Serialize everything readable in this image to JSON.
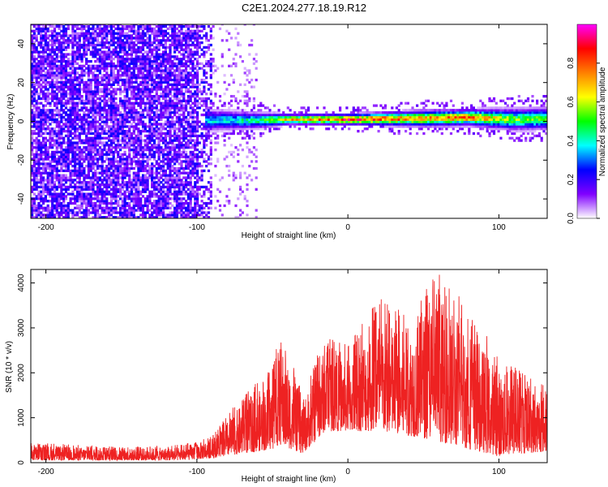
{
  "title": "C2E1.2024.277.18.19.R12",
  "chart_data": [
    {
      "type": "heatmap",
      "xlabel": "Height of straight line (km)",
      "ylabel": "Frequency (Hz)",
      "xlim": [
        -210,
        132
      ],
      "ylim": [
        -50,
        50
      ],
      "xticks": [
        -200,
        -100,
        0,
        100
      ],
      "yticks": [
        -40,
        -20,
        0,
        20,
        40
      ],
      "colorbar": {
        "label": "Normalized spectral amplitude",
        "range": [
          0,
          1
        ],
        "ticks": [
          "0.0",
          "0.2",
          "0.4",
          "0.6",
          "0.8"
        ],
        "colors": [
          "#ffffff",
          "#8000ff",
          "#0000ff",
          "#00ffff",
          "#00ff00",
          "#ffff00",
          "#ff8000",
          "#ff0000",
          "#ff00ff"
        ]
      },
      "noise_region": [
        -210,
        -90
      ],
      "signal_band": [
        {
          "x": -95,
          "freq": 0,
          "width": 4,
          "amp": 0.4
        },
        {
          "x": -60,
          "freq": 0,
          "width": 3,
          "amp": 0.5
        },
        {
          "x": -40,
          "freq": 0.5,
          "width": 2,
          "amp": 0.75
        },
        {
          "x": 0,
          "freq": 0.5,
          "width": 2,
          "amp": 0.95
        },
        {
          "x": 50,
          "freq": 1,
          "width": 3,
          "amp": 0.8
        },
        {
          "x": 80,
          "freq": 1.5,
          "width": 3,
          "amp": 0.85
        },
        {
          "x": 110,
          "freq": 0.5,
          "width": 4,
          "amp": 0.6
        },
        {
          "x": 132,
          "freq": 1,
          "width": 4,
          "amp": 0.6
        }
      ]
    },
    {
      "type": "line",
      "xlabel": "Height of straight line (km)",
      "ylabel": "SNR (10 * v/v)",
      "xlim": [
        -210,
        132
      ],
      "ylim": [
        0,
        4300
      ],
      "xticks": [
        -200,
        -100,
        0,
        100
      ],
      "yticks": [
        0,
        1000,
        2000,
        3000,
        4000
      ],
      "color": "#ee2222",
      "envelope": [
        {
          "x": -210,
          "min": 50,
          "max": 450
        },
        {
          "x": -150,
          "min": 50,
          "max": 350
        },
        {
          "x": -110,
          "min": 50,
          "max": 400
        },
        {
          "x": -90,
          "min": 100,
          "max": 600
        },
        {
          "x": -70,
          "min": 200,
          "max": 1500
        },
        {
          "x": -50,
          "min": 300,
          "max": 2100
        },
        {
          "x": -45,
          "min": 400,
          "max": 3100
        },
        {
          "x": -30,
          "min": 200,
          "max": 1500
        },
        {
          "x": -15,
          "min": 700,
          "max": 2900
        },
        {
          "x": 0,
          "min": 700,
          "max": 2600
        },
        {
          "x": 20,
          "min": 700,
          "max": 3700
        },
        {
          "x": 40,
          "min": 600,
          "max": 3300
        },
        {
          "x": 58,
          "min": 500,
          "max": 4300
        },
        {
          "x": 80,
          "min": 300,
          "max": 3500
        },
        {
          "x": 100,
          "min": 150,
          "max": 2400
        },
        {
          "x": 132,
          "min": 250,
          "max": 1700
        }
      ]
    }
  ]
}
